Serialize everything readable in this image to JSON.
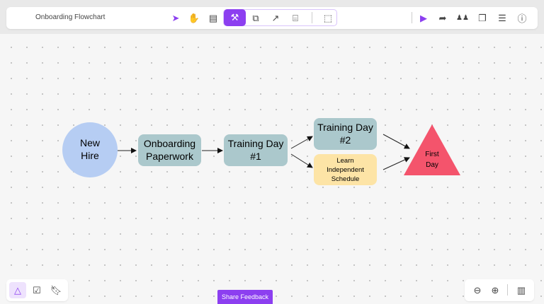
{
  "header": {
    "title": "Onboarding Flowchart"
  },
  "toolbar": {
    "tools": [
      "select-icon",
      "hand-icon",
      "sticky-note-icon",
      "tools-icon",
      "shapes-icon",
      "arrow-icon",
      "text-frame-icon",
      "selection-frame-icon"
    ],
    "active_tool": "tools-icon"
  },
  "right_toolbar": [
    "present-icon",
    "share-icon",
    "collaborators-icon",
    "comments-icon",
    "list-icon",
    "help-icon"
  ],
  "bottom_left": [
    "shapes-library-icon",
    "checklist-icon",
    "bookmark-icon"
  ],
  "bottom_right": [
    "zoom-out-icon",
    "zoom-in-icon",
    "map-icon"
  ],
  "feedback_label": "Share Feedback",
  "colors": {
    "accent": "#8c3ff0",
    "circle": "#b6cdf3",
    "process": "#abc8cc",
    "note": "#fde4a6",
    "end": "#f4546c"
  },
  "flowchart": {
    "nodes": {
      "new_hire": [
        "New",
        "Hire"
      ],
      "paperwork": [
        "Onboarding",
        "Paperwork"
      ],
      "day1": [
        "Training Day",
        "#1"
      ],
      "day2": [
        "Training Day",
        "#2"
      ],
      "schedule": [
        "Learn",
        "Independent",
        "Schedule"
      ],
      "first_day": [
        "First",
        "Day"
      ]
    }
  }
}
